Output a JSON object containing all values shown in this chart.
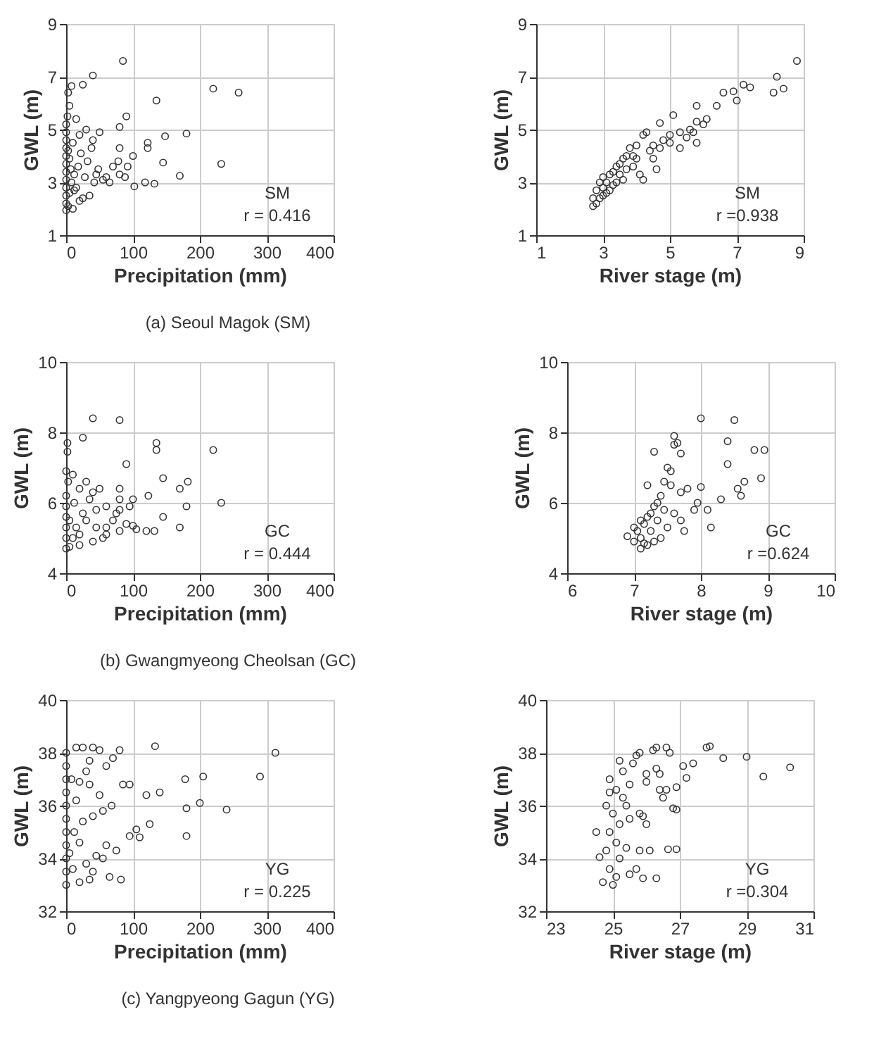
{
  "chart_data": [
    {
      "type": "scatter",
      "subtitle": "(a) Seoul Magok (SM)",
      "xlabel": "Precipitation (mm)",
      "ylabel": "GWL (m)",
      "annotations": [
        "SM",
        "r = 0.416"
      ],
      "xlim": [
        0,
        400
      ],
      "ylim": [
        1,
        9
      ],
      "xticks": [
        0,
        100,
        200,
        300,
        400
      ],
      "yticks": [
        1,
        3,
        5,
        7,
        9
      ],
      "grid": true,
      "marker": "circle",
      "series": [
        {
          "color": "#333333",
          "x": [
            85,
            40,
            8,
            25,
            3,
            220,
            258,
            135,
            90,
            80,
            180,
            148,
            122,
            122,
            80,
            100,
            78,
            145,
            232,
            170,
            102,
            118,
            132,
            65,
            50,
            40,
            30,
            15,
            5,
            2,
            60,
            45,
            35,
            25,
            20,
            10,
            0,
            0,
            0,
            0,
            0,
            0,
            0,
            0,
            0,
            0,
            0,
            0,
            3,
            5,
            8,
            12,
            15,
            18,
            22,
            28,
            32,
            38,
            42,
            48,
            55,
            70,
            80,
            88,
            92,
            5,
            10,
            20,
            3,
            7,
            12
          ],
          "values": [
            7.6,
            7.05,
            6.65,
            6.7,
            6.4,
            6.55,
            6.4,
            6.1,
            5.5,
            5.1,
            4.85,
            4.75,
            4.5,
            4.3,
            4.3,
            4.0,
            3.8,
            3.75,
            3.7,
            3.25,
            2.85,
            3.0,
            2.95,
            3.0,
            4.9,
            4.6,
            5.0,
            5.4,
            5.9,
            5.5,
            3.2,
            3.3,
            2.5,
            2.4,
            2.3,
            2.0,
            1.95,
            2.2,
            2.5,
            2.8,
            3.1,
            3.4,
            3.7,
            4.0,
            4.3,
            4.6,
            4.9,
            5.2,
            2.1,
            2.6,
            3.0,
            3.3,
            2.8,
            3.6,
            4.1,
            3.2,
            3.8,
            4.3,
            3.0,
            3.5,
            3.1,
            3.6,
            3.3,
            3.2,
            3.6,
            3.9,
            4.5,
            4.8,
            4.2,
            3.5,
            2.7
          ]
        }
      ]
    },
    {
      "type": "scatter",
      "xlabel": "River stage (m)",
      "ylabel": "GWL (m)",
      "annotations": [
        "SM",
        "r =0.938"
      ],
      "xlim": [
        1,
        9
      ],
      "ylim": [
        1,
        9
      ],
      "xticks": [
        1,
        3,
        5,
        7,
        9
      ],
      "yticks": [
        1,
        3,
        5,
        7,
        9
      ],
      "grid": true,
      "marker": "circle",
      "series": [
        {
          "color": "#333333",
          "x": [
            2.7,
            2.7,
            2.8,
            2.8,
            2.9,
            2.9,
            3.0,
            3.0,
            3.0,
            3.1,
            3.1,
            3.2,
            3.2,
            3.3,
            3.3,
            3.4,
            3.5,
            3.5,
            3.6,
            3.7,
            3.7,
            3.8,
            3.9,
            4.0,
            4.0,
            4.1,
            4.2,
            4.2,
            4.3,
            4.4,
            4.5,
            4.5,
            4.6,
            4.7,
            4.7,
            4.8,
            5.0,
            5.0,
            5.1,
            5.3,
            5.3,
            5.5,
            5.6,
            5.7,
            5.8,
            5.8,
            5.8,
            6.0,
            6.1,
            6.4,
            6.6,
            6.9,
            7.0,
            7.2,
            7.4,
            8.1,
            8.2,
            8.4,
            8.8,
            3.4,
            3.6,
            3.9
          ],
          "values": [
            2.1,
            2.4,
            2.2,
            2.7,
            2.4,
            3.0,
            2.5,
            2.8,
            3.2,
            2.6,
            3.0,
            2.7,
            3.3,
            2.9,
            3.4,
            3.0,
            3.3,
            3.7,
            3.1,
            3.5,
            4.0,
            4.3,
            3.6,
            3.9,
            4.4,
            3.3,
            3.1,
            4.8,
            4.9,
            4.2,
            3.9,
            4.4,
            3.5,
            4.3,
            5.25,
            4.6,
            4.5,
            4.8,
            5.55,
            4.3,
            4.9,
            4.7,
            5.0,
            4.9,
            4.5,
            5.3,
            5.9,
            5.2,
            5.4,
            5.9,
            6.4,
            6.45,
            6.1,
            6.7,
            6.6,
            6.4,
            7.0,
            6.55,
            7.6,
            3.6,
            3.9,
            4.0
          ]
        }
      ]
    },
    {
      "type": "scatter",
      "subtitle": "(b) Gwangmyeong Cheolsan (GC)",
      "xlabel": "Precipitation (mm)",
      "ylabel": "GWL (m)",
      "annotations": [
        "GC",
        "r = 0.444"
      ],
      "xlim": [
        0,
        400
      ],
      "ylim": [
        4,
        10
      ],
      "xticks": [
        0,
        100,
        200,
        300,
        400
      ],
      "yticks": [
        4,
        6,
        8,
        10
      ],
      "grid": true,
      "marker": "circle",
      "series": [
        {
          "color": "#333333",
          "x": [
            40,
            80,
            25,
            2,
            2,
            135,
            135,
            220,
            90,
            145,
            170,
            182,
            123,
            100,
            80,
            80,
            95,
            75,
            80,
            180,
            232,
            145,
            90,
            100,
            105,
            120,
            132,
            170,
            80,
            60,
            50,
            30,
            20,
            10,
            3,
            40,
            35,
            60,
            45,
            30,
            55,
            40,
            20,
            10,
            0,
            0,
            0,
            0,
            0,
            0,
            0,
            15,
            25,
            5,
            70,
            60,
            45,
            5,
            12,
            20
          ],
          "values": [
            8.4,
            8.35,
            7.85,
            7.7,
            7.45,
            7.7,
            7.5,
            7.5,
            7.1,
            6.7,
            6.4,
            6.6,
            6.2,
            6.1,
            6.4,
            6.1,
            5.9,
            5.7,
            5.8,
            5.9,
            6.0,
            5.6,
            5.4,
            5.35,
            5.25,
            5.2,
            5.2,
            5.3,
            5.2,
            5.3,
            6.4,
            6.6,
            6.4,
            6.8,
            6.6,
            6.3,
            6.1,
            5.9,
            5.8,
            5.5,
            5.0,
            4.9,
            4.8,
            5.0,
            4.7,
            5.0,
            5.3,
            5.6,
            5.9,
            6.2,
            6.9,
            5.3,
            5.7,
            5.5,
            5.5,
            5.1,
            5.3,
            4.75,
            6.0,
            5.1
          ]
        }
      ]
    },
    {
      "type": "scatter",
      "xlabel": "River stage (m)",
      "ylabel": "GWL (m)",
      "annotations": [
        "GC",
        "r =0.624"
      ],
      "xlim": [
        6,
        10
      ],
      "ylim": [
        4,
        10
      ],
      "xticks": [
        6,
        7,
        8,
        9,
        10
      ],
      "yticks": [
        4,
        6,
        8,
        10
      ],
      "grid": true,
      "marker": "circle",
      "series": [
        {
          "color": "#333333",
          "x": [
            6.9,
            7.0,
            7.05,
            7.1,
            7.1,
            7.15,
            7.2,
            7.2,
            7.25,
            7.3,
            7.3,
            7.35,
            7.4,
            7.4,
            7.45,
            7.3,
            7.5,
            7.5,
            7.55,
            7.6,
            7.6,
            7.6,
            7.65,
            7.7,
            7.7,
            7.7,
            7.75,
            7.8,
            7.9,
            7.95,
            8.0,
            8.0,
            8.1,
            8.15,
            8.3,
            8.4,
            8.4,
            8.5,
            8.55,
            8.6,
            8.65,
            8.8,
            8.9,
            8.95,
            7.2,
            7.35,
            7.25,
            7.15,
            7.0,
            7.45,
            7.55,
            7.1
          ],
          "values": [
            5.05,
            4.9,
            5.2,
            4.7,
            5.0,
            5.4,
            4.8,
            5.6,
            5.2,
            5.9,
            4.9,
            5.5,
            6.2,
            5.0,
            6.6,
            7.45,
            5.3,
            7.0,
            6.5,
            7.9,
            7.65,
            5.7,
            7.7,
            7.4,
            6.3,
            5.5,
            5.2,
            6.4,
            5.8,
            6.0,
            6.45,
            8.4,
            5.8,
            5.3,
            6.1,
            7.75,
            7.1,
            8.35,
            6.4,
            6.2,
            6.6,
            7.5,
            6.7,
            7.5,
            6.5,
            6.0,
            5.7,
            4.85,
            5.3,
            5.8,
            6.9,
            5.5
          ]
        }
      ]
    },
    {
      "type": "scatter",
      "subtitle": "(c) Yangpyeong Gagun (YG)",
      "xlabel": "Precipitation (mm)",
      "ylabel": "GWL (m)",
      "annotations": [
        "YG",
        "r = 0.225"
      ],
      "xlim": [
        0,
        400
      ],
      "ylim": [
        32,
        40
      ],
      "xticks": [
        0,
        100,
        200,
        300,
        400
      ],
      "yticks": [
        32,
        34,
        36,
        38,
        40
      ],
      "grid": true,
      "marker": "circle",
      "series": [
        {
          "color": "#333333",
          "x": [
            0,
            0,
            0,
            0,
            0,
            0,
            0,
            0,
            0,
            0,
            0,
            15,
            25,
            40,
            50,
            80,
            133,
            313,
            70,
            60,
            30,
            20,
            35,
            85,
            95,
            120,
            140,
            178,
            205,
            290,
            180,
            200,
            240,
            55,
            68,
            105,
            125,
            95,
            110,
            180,
            60,
            75,
            45,
            55,
            30,
            40,
            35,
            20,
            65,
            82,
            10,
            12,
            15,
            25,
            40,
            50,
            8,
            5,
            20,
            35
          ],
          "values": [
            33.0,
            33.5,
            34,
            34.5,
            35,
            35.5,
            36,
            36.5,
            37,
            37.5,
            38,
            38.2,
            38.2,
            38.2,
            38.1,
            38.1,
            38.25,
            38.0,
            37.8,
            37.5,
            37.3,
            36.9,
            36.8,
            36.8,
            36.8,
            36.4,
            36.5,
            37.0,
            37.1,
            37.1,
            35.9,
            36.1,
            35.85,
            35.8,
            36.0,
            35.1,
            35.3,
            34.85,
            34.8,
            34.85,
            34.5,
            34.3,
            34.1,
            34.0,
            33.8,
            33.5,
            33.2,
            33.1,
            33.3,
            33.2,
            33.6,
            35.0,
            36.2,
            35.4,
            35.6,
            36.4,
            37.0,
            34.2,
            34.6,
            37.7
          ]
        }
      ]
    },
    {
      "type": "scatter",
      "xlabel": "River stage (m)",
      "ylabel": "GWL (m)",
      "annotations": [
        "YG",
        "r =0.304"
      ],
      "xlim": [
        23,
        31
      ],
      "ylim": [
        32,
        40
      ],
      "xticks": [
        23,
        25,
        27,
        29,
        31
      ],
      "yticks": [
        32,
        34,
        36,
        38,
        40
      ],
      "grid": true,
      "marker": "circle",
      "series": [
        {
          "color": "#333333",
          "x": [
            25.0,
            25.1,
            24.9,
            25.2,
            24.8,
            25.1,
            24.9,
            25.2,
            25.0,
            24.8,
            25.3,
            25.1,
            24.9,
            25.3,
            24.6,
            24.5,
            24.7,
            25.5,
            25.4,
            25.5,
            25.5,
            25.6,
            25.7,
            25.8,
            25.7,
            25.8,
            25.8,
            25.9,
            26.0,
            26.1,
            25.9,
            26.3,
            26.0,
            26.0,
            26.2,
            26.3,
            26.3,
            26.4,
            26.4,
            26.5,
            26.6,
            26.6,
            26.7,
            26.8,
            26.9,
            26.9,
            26.65,
            26.9,
            27.1,
            27.2,
            27.4,
            27.8,
            27.9,
            28.3,
            29.0,
            29.5,
            30.3,
            25.2,
            24.9,
            25.4
          ],
          "values": [
            33.0,
            33.3,
            33.6,
            34,
            34.3,
            34.6,
            35,
            35.3,
            35.7,
            36,
            36.3,
            36.6,
            37,
            37.3,
            34.05,
            35.0,
            33.1,
            33.4,
            34.4,
            35.5,
            36.8,
            37.6,
            37.9,
            38.0,
            33.6,
            34.3,
            35.7,
            35.6,
            35.3,
            34.3,
            33.25,
            33.25,
            36.9,
            37.2,
            38.1,
            38.2,
            37.4,
            37.2,
            36.6,
            36.3,
            36.6,
            38.2,
            38.0,
            35.9,
            35.85,
            36.7,
            34.35,
            34.35,
            37.5,
            37.05,
            37.6,
            38.2,
            38.25,
            37.8,
            37.85,
            37.1,
            37.45,
            37.7,
            36.5,
            36.0
          ]
        }
      ]
    }
  ]
}
